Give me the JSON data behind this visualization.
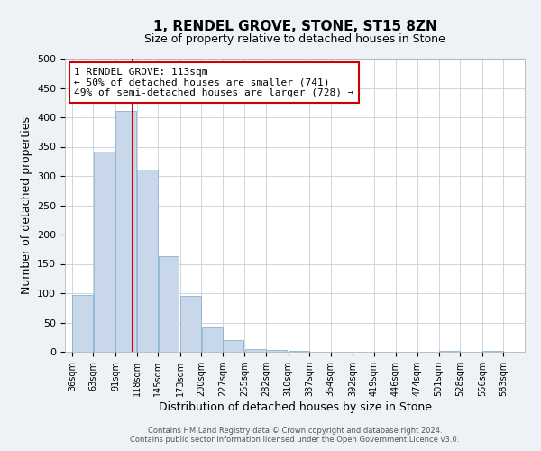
{
  "title": "1, RENDEL GROVE, STONE, ST15 8ZN",
  "subtitle": "Size of property relative to detached houses in Stone",
  "xlabel": "Distribution of detached houses by size in Stone",
  "ylabel": "Number of detached properties",
  "bar_color": "#c8d8ea",
  "bar_edge_color": "#8ab4d0",
  "bar_left_edges": [
    36,
    63,
    91,
    118,
    145,
    173,
    200,
    227,
    255,
    282,
    310,
    337,
    364,
    392,
    419,
    446,
    474,
    501,
    528,
    556
  ],
  "bar_heights": [
    97,
    341,
    411,
    311,
    163,
    95,
    42,
    20,
    5,
    3,
    2,
    0,
    0,
    0,
    0,
    0,
    0,
    2,
    0,
    2
  ],
  "bin_width": 27,
  "tick_labels": [
    "36sqm",
    "63sqm",
    "91sqm",
    "118sqm",
    "145sqm",
    "173sqm",
    "200sqm",
    "227sqm",
    "255sqm",
    "282sqm",
    "310sqm",
    "337sqm",
    "364sqm",
    "392sqm",
    "419sqm",
    "446sqm",
    "474sqm",
    "501sqm",
    "528sqm",
    "556sqm",
    "583sqm"
  ],
  "vline_x": 113,
  "vline_color": "#cc0000",
  "annotation_line1": "1 RENDEL GROVE: 113sqm",
  "annotation_line2": "← 50% of detached houses are smaller (741)",
  "annotation_line3": "49% of semi-detached houses are larger (728) →",
  "annotation_box_color": "#ffffff",
  "annotation_box_edge": "#cc0000",
  "ylim": [
    0,
    500
  ],
  "xlim": [
    27,
    610
  ],
  "tick_positions": [
    36,
    63,
    91,
    118,
    145,
    173,
    200,
    227,
    255,
    282,
    310,
    337,
    364,
    392,
    419,
    446,
    474,
    501,
    528,
    556,
    583
  ],
  "yticks": [
    0,
    50,
    100,
    150,
    200,
    250,
    300,
    350,
    400,
    450,
    500
  ],
  "footer_text": "Contains HM Land Registry data © Crown copyright and database right 2024.\nContains public sector information licensed under the Open Government Licence v3.0.",
  "bg_color": "#eef2f7",
  "plot_bg_color": "#ffffff",
  "grid_color": "#c5d0dc",
  "title_fontsize": 11,
  "subtitle_fontsize": 9,
  "axis_label_fontsize": 9,
  "tick_fontsize": 7,
  "annotation_fontsize": 8,
  "footer_fontsize": 6
}
